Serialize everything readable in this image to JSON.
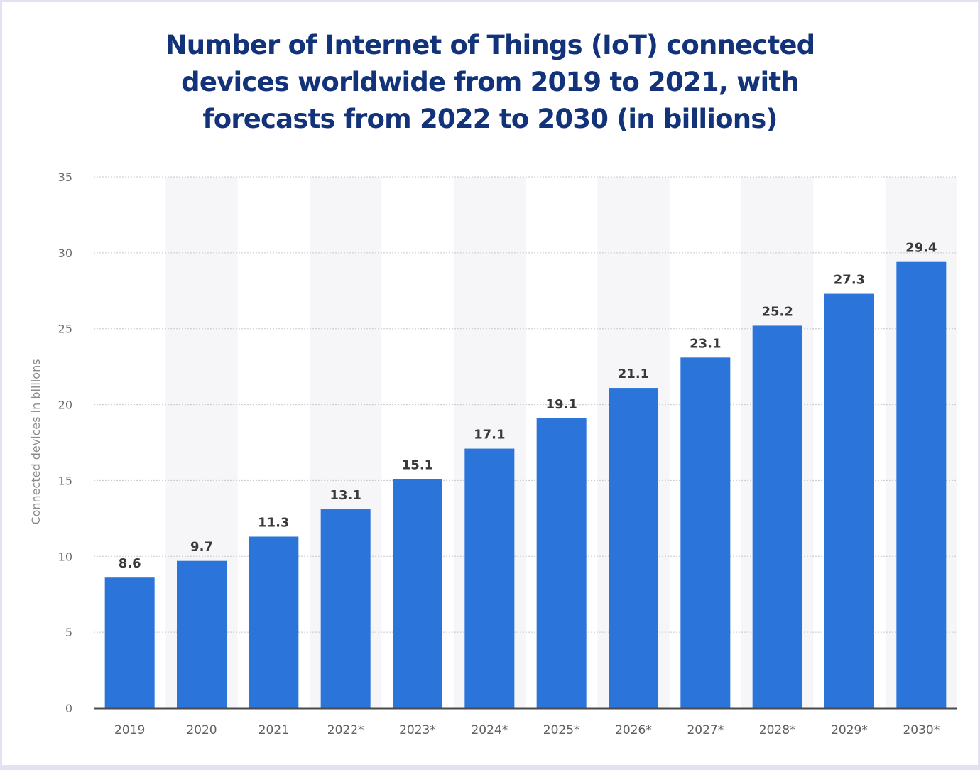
{
  "title_lines": [
    "Number of Internet of Things (IoT) connected",
    "devices worldwide from 2019 to 2021, with",
    "forecasts from 2022 to 2030 (in billions)"
  ],
  "colors": {
    "bar": "#2a74da",
    "title": "#12337a",
    "band": "#f6f6f8",
    "axis": "#4a4a4a",
    "grid": "#c8c8c8"
  },
  "chart_data": {
    "type": "bar",
    "title": "Number of Internet of Things (IoT) connected devices worldwide from 2019 to 2021, with forecasts from 2022 to 2030 (in billions)",
    "xlabel": "",
    "ylabel": "Connected devices in billions",
    "categories": [
      "2019",
      "2020",
      "2021",
      "2022*",
      "2023*",
      "2024*",
      "2025*",
      "2026*",
      "2027*",
      "2028*",
      "2029*",
      "2030*"
    ],
    "values": [
      8.6,
      9.7,
      11.3,
      13.1,
      15.1,
      17.1,
      19.1,
      21.1,
      23.1,
      25.2,
      27.3,
      29.4
    ],
    "value_labels": [
      "8.6",
      "9.7",
      "11.3",
      "13.1",
      "15.1",
      "17.1",
      "19.1",
      "21.1",
      "23.1",
      "25.2",
      "27.3",
      "29.4"
    ],
    "ylim": [
      0,
      35
    ],
    "yticks": [
      0,
      5,
      10,
      15,
      20,
      25,
      30,
      35
    ],
    "grid": true,
    "legend": "none"
  }
}
